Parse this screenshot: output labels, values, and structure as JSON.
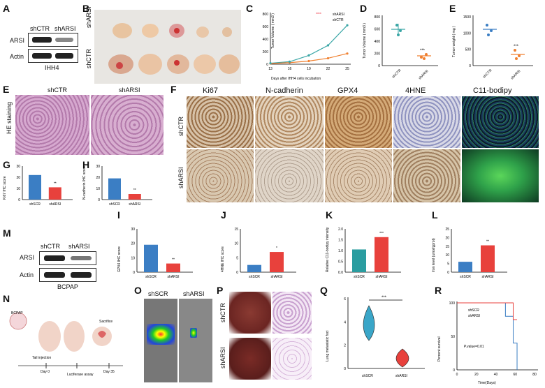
{
  "panels": {
    "A": {
      "letter": "A",
      "lane_labels": [
        "shCTR",
        "shARSI"
      ],
      "rows": [
        "ARSI",
        "Actin"
      ],
      "cell_line": "IHH4"
    },
    "B": {
      "letter": "B",
      "row_labels": [
        "shARSI",
        "shCTR"
      ]
    },
    "C": {
      "letter": "C",
      "ylabel": "Tumor Volume ( mm3 )",
      "xlabel": "Days after IHH4 cells incubation",
      "legend": [
        "shARSI",
        "shCTR"
      ],
      "xticks": [
        "13",
        "16",
        "19",
        "22",
        "25"
      ],
      "yticks": [
        "0",
        "200",
        "400",
        "600",
        "800"
      ],
      "stars": [
        "***",
        "***",
        "****"
      ]
    },
    "D": {
      "letter": "D",
      "ylabel": "Tumor Volume ( mm3 )",
      "groups": [
        "shCTR",
        "shARSI"
      ],
      "yticks": [
        "0",
        "200",
        "400",
        "600",
        "800"
      ],
      "stars": "***"
    },
    "E1": {
      "letter": "E",
      "ylabel": "Tumor weight ( mg )",
      "groups": [
        "shCTR",
        "shARSI"
      ],
      "yticks": [
        "0",
        "500",
        "1000",
        "1500"
      ],
      "stars": "***"
    },
    "E2": {
      "letter": "E",
      "cols": [
        "shCTR",
        "shARSI"
      ],
      "side": "HE staining"
    },
    "F": {
      "letter": "F",
      "cols": [
        "Ki67",
        "N-cadherin",
        "GPX4",
        "4HNE",
        "C11-bodipy"
      ],
      "rows": [
        "shCTR",
        "shARSI"
      ]
    },
    "G": {
      "letter": "G",
      "ylabel": "Ki67 IHC score",
      "groups": [
        "shSCR",
        "shARSI"
      ],
      "yticks": [
        "0",
        "10",
        "20",
        "30"
      ],
      "stars": "**"
    },
    "H": {
      "letter": "H",
      "ylabel": "N-cadherin IHC score",
      "groups": [
        "shSCR",
        "shARSI"
      ],
      "yticks": [
        "0",
        "10",
        "20",
        "30"
      ],
      "stars": "**"
    },
    "I": {
      "letter": "I",
      "ylabel": "GPX4 IHC score",
      "groups": [
        "shSCR",
        "shARSI"
      ],
      "yticks": [
        "0",
        "10",
        "20",
        "30"
      ],
      "stars": "**"
    },
    "J": {
      "letter": "J",
      "ylabel": "4HNE IHC score",
      "groups": [
        "shSCR",
        "shARSI"
      ],
      "yticks": [
        "0",
        "5",
        "10",
        "15"
      ],
      "stars": "*"
    },
    "K": {
      "letter": "K",
      "ylabel": "Relative C11-bodipy intensity",
      "groups": [
        "shSCR",
        "shARSI"
      ],
      "yticks": [
        "0.0",
        "0.5",
        "1.0",
        "1.5",
        "2.0"
      ],
      "stars": "***"
    },
    "L": {
      "letter": "L",
      "ylabel": "Iron level (umol/gprot)",
      "groups": [
        "shSCR",
        "shARSI"
      ],
      "yticks": [
        "0",
        "5",
        "10",
        "15",
        "20",
        "25"
      ],
      "stars": "**"
    },
    "M": {
      "letter": "M",
      "lane_labels": [
        "shCTR",
        "shARSI"
      ],
      "rows": [
        "ARSI",
        "Actin"
      ],
      "cell_line": "BCPAP"
    },
    "N": {
      "letter": "N",
      "labels": [
        "BCPAP",
        "Tail injection",
        "Luciferase assay",
        "Sacrifice",
        "Day 0",
        "Day 35"
      ]
    },
    "O": {
      "letter": "O",
      "cols": [
        "shSCR",
        "shARSI"
      ]
    },
    "P": {
      "letter": "P",
      "rows": [
        "shCTR",
        "shARSI"
      ]
    },
    "Q": {
      "letter": "Q",
      "ylabel": "Lung metastatic foci",
      "groups": [
        "shSCR",
        "shARSI"
      ],
      "yticks": [
        "0",
        "2",
        "4",
        "6"
      ],
      "stars": "***"
    },
    "R": {
      "letter": "R",
      "ylabel": "Percent survival",
      "xlabel": "Time(Days)",
      "legend": [
        "shSCR",
        "shARSI"
      ],
      "pvalue": "P.value=0.01",
      "xticks": [
        "0",
        "20",
        "40",
        "60",
        "80"
      ],
      "yticks": [
        "0",
        "50",
        "100"
      ]
    }
  },
  "colors": {
    "ctr": "#3aa6a6",
    "arsi": "#f08030",
    "red": "#e8413c",
    "blue": "#3b7ec4",
    "teal": "#2a9da0"
  },
  "chart_data": [
    {
      "panel": "C",
      "type": "line",
      "x": [
        13,
        16,
        19,
        22,
        25
      ],
      "series": [
        {
          "name": "shARSI",
          "values": [
            10,
            25,
            50,
            95,
            170
          ]
        },
        {
          "name": "shCTR",
          "values": [
            15,
            40,
            140,
            300,
            620
          ]
        }
      ],
      "ylim": [
        0,
        800
      ]
    },
    {
      "panel": "D",
      "type": "scatter",
      "categories": [
        "shCTR",
        "shARSI"
      ],
      "values": [
        580,
        150
      ],
      "ylim": [
        0,
        800
      ]
    },
    {
      "panel": "E",
      "type": "scatter",
      "categories": [
        "shCTR",
        "shARSI"
      ],
      "values": [
        1050,
        300
      ],
      "ylim": [
        0,
        1500
      ]
    },
    {
      "panel": "G",
      "type": "bar",
      "categories": [
        "shSCR",
        "shARSI"
      ],
      "values": [
        22,
        11
      ],
      "ylim": [
        0,
        30
      ]
    },
    {
      "panel": "H",
      "type": "bar",
      "categories": [
        "shSCR",
        "shARSI"
      ],
      "values": [
        19,
        5
      ],
      "ylim": [
        0,
        30
      ]
    },
    {
      "panel": "I",
      "type": "bar",
      "categories": [
        "shSCR",
        "shARSI"
      ],
      "values": [
        19,
        6
      ],
      "ylim": [
        0,
        30
      ]
    },
    {
      "panel": "J",
      "type": "bar",
      "categories": [
        "shSCR",
        "shARSI"
      ],
      "values": [
        2.5,
        7
      ],
      "ylim": [
        0,
        15
      ]
    },
    {
      "panel": "K",
      "type": "bar",
      "categories": [
        "shSCR",
        "shARSI"
      ],
      "values": [
        1.05,
        1.62
      ],
      "ylim": [
        0,
        2
      ]
    },
    {
      "panel": "L",
      "type": "bar",
      "categories": [
        "shSCR",
        "shARSI"
      ],
      "values": [
        6,
        15.5
      ],
      "ylim": [
        0,
        25
      ]
    },
    {
      "panel": "R",
      "type": "line",
      "series": [
        {
          "name": "shSCR",
          "values": [
            100,
            100,
            80,
            40,
            0
          ]
        },
        {
          "name": "shARSI",
          "values": [
            100,
            100,
            100,
            75,
            75
          ]
        }
      ],
      "x": [
        0,
        40,
        50,
        58,
        62
      ]
    }
  ]
}
